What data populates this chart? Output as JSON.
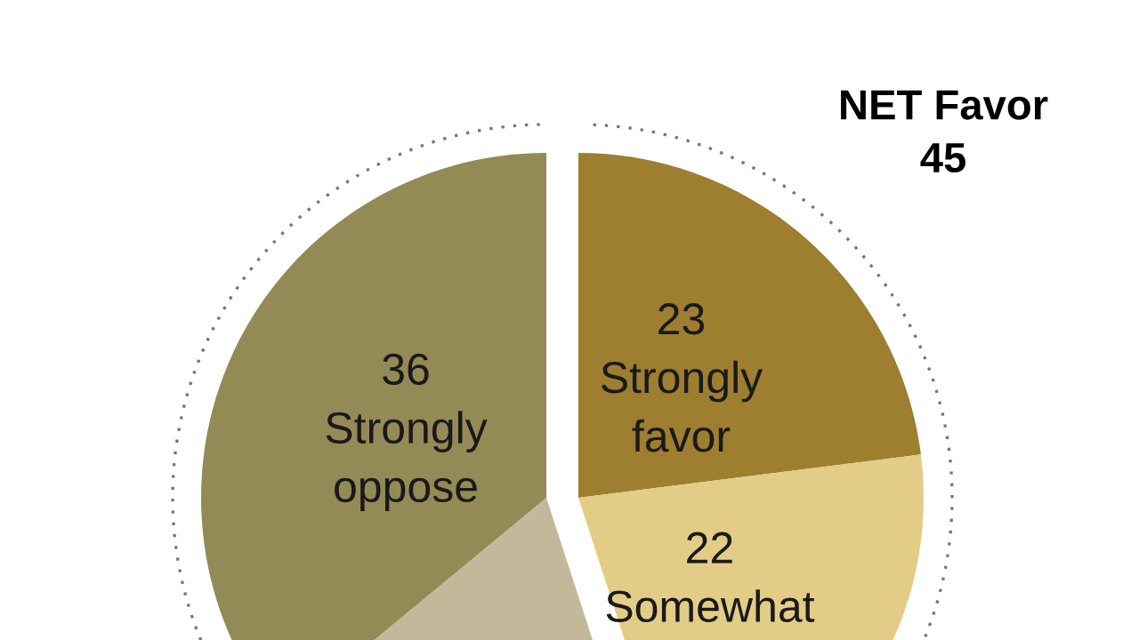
{
  "chart_data": {
    "type": "pie",
    "categories": [
      "Strongly favor",
      "Somewhat",
      null,
      "Strongly oppose"
    ],
    "values": [
      23,
      22,
      19,
      36
    ],
    "colors": [
      "#9e7e2f",
      "#e3cc85",
      "#c2b99a",
      "#948a56"
    ],
    "value_labels": [
      "23",
      "22",
      null,
      "36"
    ],
    "annotations": [
      "NET Favor\n45"
    ]
  }
}
